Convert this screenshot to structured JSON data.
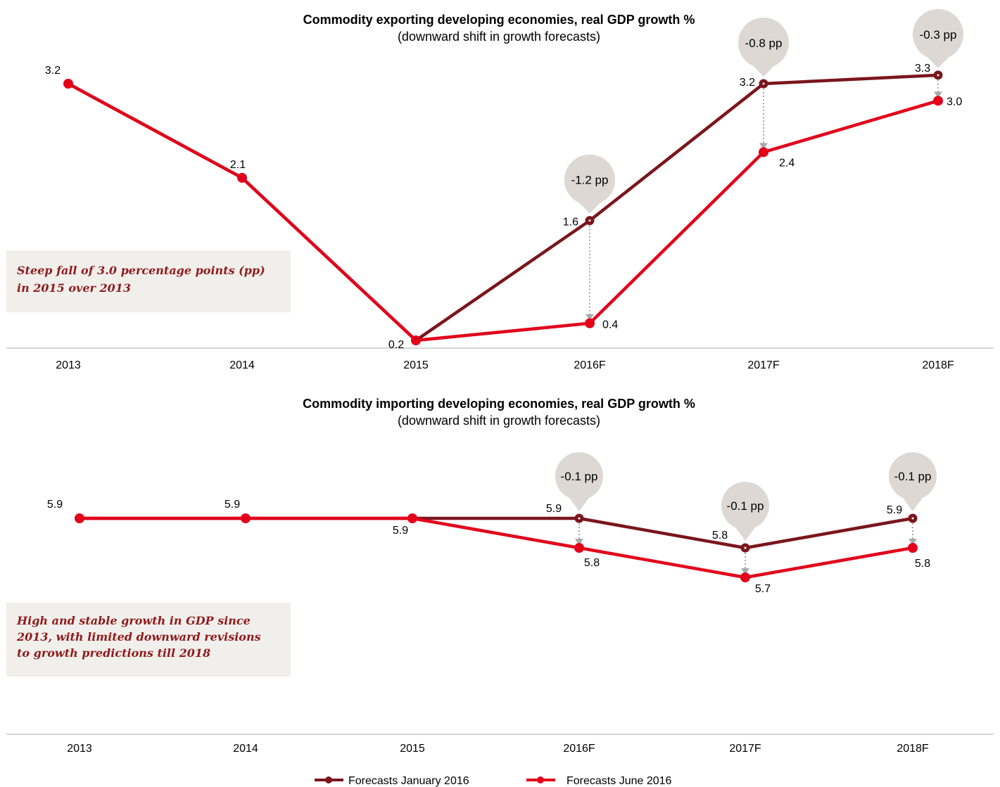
{
  "legend": {
    "january": "Forecasts January 2016",
    "june": "Forecasts June 2016"
  },
  "colors": {
    "january": "#7b151c",
    "june": "#e2001a",
    "bubble": "#ddd8d3",
    "note_box": "#f1efec",
    "note_text": "#8f1c1c",
    "connector": "#aaaaaa",
    "axis": "#c8c8c8"
  },
  "chart_data": [
    {
      "type": "line",
      "title": "Commodity exporting developing economies, real GDP growth %",
      "subtitle": "(downward shift in growth forecasts)",
      "categories": [
        "2013",
        "2014",
        "2015",
        "2016F",
        "2017F",
        "2018F"
      ],
      "series": [
        {
          "name": "Forecasts January 2016",
          "values": [
            3.2,
            2.1,
            0.2,
            1.6,
            3.2,
            3.3
          ]
        },
        {
          "name": "Forecasts June 2016",
          "values": [
            3.2,
            2.1,
            0.2,
            0.4,
            2.4,
            3.0
          ]
        }
      ],
      "point_labels": [
        {
          "category": "2013",
          "text": "3.2"
        },
        {
          "category": "2014",
          "text": "2.1"
        },
        {
          "category": "2015",
          "text": "0.2"
        },
        {
          "category": "2016F",
          "series": "Forecasts January 2016",
          "text": "1.6"
        },
        {
          "category": "2016F",
          "series": "Forecasts June 2016",
          "text": "0.4"
        },
        {
          "category": "2017F",
          "series": "Forecasts January 2016",
          "text": "3.2"
        },
        {
          "category": "2017F",
          "series": "Forecasts June 2016",
          "text": "2.4"
        },
        {
          "category": "2018F",
          "series": "Forecasts January 2016",
          "text": "3.3"
        },
        {
          "category": "2018F",
          "series": "Forecasts June 2016",
          "text": "3.0"
        }
      ],
      "revisions": [
        {
          "category": "2016F",
          "text": "-1.2 pp"
        },
        {
          "category": "2017F",
          "text": "-0.8 pp"
        },
        {
          "category": "2018F",
          "text": "-0.3 pp"
        }
      ],
      "annotation": [
        "Steep fall of 3.0 percentage points (pp)",
        "in 2015 over 2013"
      ]
    },
    {
      "type": "line",
      "title": "Commodity importing developing economies, real GDP growth %",
      "subtitle": "(downward shift in growth forecasts)",
      "categories": [
        "2013",
        "2014",
        "2015",
        "2016F",
        "2017F",
        "2018F"
      ],
      "series": [
        {
          "name": "Forecasts January 2016",
          "values": [
            5.9,
            5.9,
            5.9,
            5.9,
            5.8,
            5.9
          ]
        },
        {
          "name": "Forecasts June 2016",
          "values": [
            5.9,
            5.9,
            5.9,
            5.8,
            5.7,
            5.8
          ]
        }
      ],
      "point_labels": [
        {
          "category": "2013",
          "text": "5.9"
        },
        {
          "category": "2014",
          "text": "5.9"
        },
        {
          "category": "2015",
          "text": "5.9"
        },
        {
          "category": "2016F",
          "series": "Forecasts January 2016",
          "text": "5.9"
        },
        {
          "category": "2016F",
          "series": "Forecasts June 2016",
          "text": "5.8"
        },
        {
          "category": "2017F",
          "series": "Forecasts January 2016",
          "text": "5.8"
        },
        {
          "category": "2017F",
          "series": "Forecasts June 2016",
          "text": "5.7"
        },
        {
          "category": "2018F",
          "series": "Forecasts January 2016",
          "text": "5.9"
        },
        {
          "category": "2018F",
          "series": "Forecasts June 2016",
          "text": "5.8"
        }
      ],
      "revisions": [
        {
          "category": "2016F",
          "text": "-0.1 pp"
        },
        {
          "category": "2017F",
          "text": "-0.1 pp"
        },
        {
          "category": "2018F",
          "text": "-0.1 pp"
        }
      ],
      "annotation": [
        "High and stable growth in GDP since",
        "2013, with limited downward revisions",
        "to growth predictions till 2018"
      ]
    }
  ]
}
